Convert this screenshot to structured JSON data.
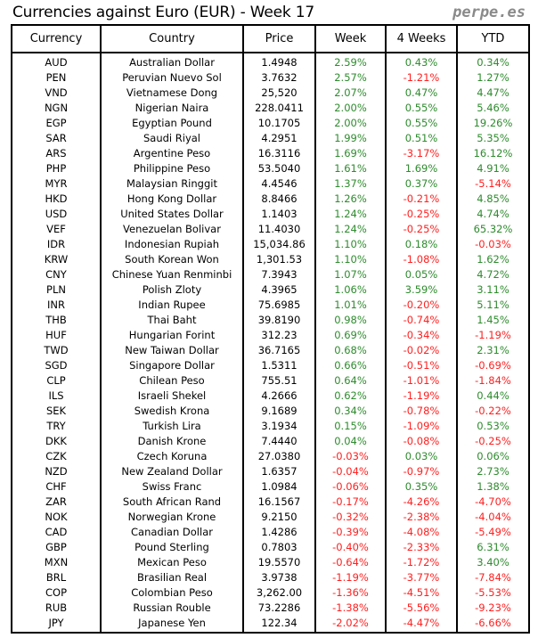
{
  "title": "Currencies against Euro (EUR) - Week 17",
  "brand": "perpe.es",
  "colors": {
    "positive": "#2e8b2e",
    "negative": "#ff2020"
  },
  "chart_data": {
    "type": "table",
    "title": "Currencies against Euro (EUR) - Week 17",
    "columns": [
      "Currency",
      "Country",
      "Price",
      "Week",
      "4 Weeks",
      "YTD"
    ],
    "rows": [
      [
        "AUD",
        "Australian Dollar",
        "1.4948",
        "2.59%",
        "0.43%",
        "0.34%"
      ],
      [
        "PEN",
        "Peruvian Nuevo Sol",
        "3.7632",
        "2.57%",
        "-1.21%",
        "1.27%"
      ],
      [
        "VND",
        "Vietnamese Dong",
        "25,520",
        "2.07%",
        "0.47%",
        "4.47%"
      ],
      [
        "NGN",
        "Nigerian Naira",
        "228.0411",
        "2.00%",
        "0.55%",
        "5.46%"
      ],
      [
        "EGP",
        "Egyptian Pound",
        "10.1705",
        "2.00%",
        "0.55%",
        "19.26%"
      ],
      [
        "SAR",
        "Saudi Riyal",
        "4.2951",
        "1.99%",
        "0.51%",
        "5.35%"
      ],
      [
        "ARS",
        "Argentine Peso",
        "16.3116",
        "1.69%",
        "-3.17%",
        "16.12%"
      ],
      [
        "PHP",
        "Philippine Peso",
        "53.5040",
        "1.61%",
        "1.69%",
        "4.91%"
      ],
      [
        "MYR",
        "Malaysian Ringgit",
        "4.4546",
        "1.37%",
        "0.37%",
        "-5.14%"
      ],
      [
        "HKD",
        "Hong Kong Dollar",
        "8.8466",
        "1.26%",
        "-0.21%",
        "4.85%"
      ],
      [
        "USD",
        "United States Dollar",
        "1.1403",
        "1.24%",
        "-0.25%",
        "4.74%"
      ],
      [
        "VEF",
        "Venezuelan Bolivar",
        "11.4030",
        "1.24%",
        "-0.25%",
        "65.32%"
      ],
      [
        "IDR",
        "Indonesian Rupiah",
        "15,034.86",
        "1.10%",
        "0.18%",
        "-0.03%"
      ],
      [
        "KRW",
        "South Korean Won",
        "1,301.53",
        "1.10%",
        "-1.08%",
        "1.62%"
      ],
      [
        "CNY",
        "Chinese Yuan Renminbi",
        "7.3943",
        "1.07%",
        "0.05%",
        "4.72%"
      ],
      [
        "PLN",
        "Polish Zloty",
        "4.3965",
        "1.06%",
        "3.59%",
        "3.11%"
      ],
      [
        "INR",
        "Indian Rupee",
        "75.6985",
        "1.01%",
        "-0.20%",
        "5.11%"
      ],
      [
        "THB",
        "Thai Baht",
        "39.8190",
        "0.98%",
        "-0.74%",
        "1.45%"
      ],
      [
        "HUF",
        "Hungarian Forint",
        "312.23",
        "0.69%",
        "-0.34%",
        "-1.19%"
      ],
      [
        "TWD",
        "New Taiwan Dollar",
        "36.7165",
        "0.68%",
        "-0.02%",
        "2.31%"
      ],
      [
        "SGD",
        "Singapore Dollar",
        "1.5311",
        "0.66%",
        "-0.51%",
        "-0.69%"
      ],
      [
        "CLP",
        "Chilean Peso",
        "755.51",
        "0.64%",
        "-1.01%",
        "-1.84%"
      ],
      [
        "ILS",
        "Israeli Shekel",
        "4.2666",
        "0.62%",
        "-1.19%",
        "0.44%"
      ],
      [
        "SEK",
        "Swedish Krona",
        "9.1689",
        "0.34%",
        "-0.78%",
        "-0.22%"
      ],
      [
        "TRY",
        "Turkish Lira",
        "3.1934",
        "0.15%",
        "-1.09%",
        "0.53%"
      ],
      [
        "DKK",
        "Danish Krone",
        "7.4440",
        "0.04%",
        "-0.08%",
        "-0.25%"
      ],
      [
        "CZK",
        "Czech Koruna",
        "27.0380",
        "-0.03%",
        "0.03%",
        "0.06%"
      ],
      [
        "NZD",
        "New Zealand Dollar",
        "1.6357",
        "-0.04%",
        "-0.97%",
        "2.73%"
      ],
      [
        "CHF",
        "Swiss Franc",
        "1.0984",
        "-0.06%",
        "0.35%",
        "1.38%"
      ],
      [
        "ZAR",
        "South African Rand",
        "16.1567",
        "-0.17%",
        "-4.26%",
        "-4.70%"
      ],
      [
        "NOK",
        "Norwegian Krone",
        "9.2150",
        "-0.32%",
        "-2.38%",
        "-4.04%"
      ],
      [
        "CAD",
        "Canadian Dollar",
        "1.4286",
        "-0.39%",
        "-4.08%",
        "-5.49%"
      ],
      [
        "GBP",
        "Pound Sterling",
        "0.7803",
        "-0.40%",
        "-2.33%",
        "6.31%"
      ],
      [
        "MXN",
        "Mexican Peso",
        "19.5570",
        "-0.64%",
        "-1.72%",
        "3.40%"
      ],
      [
        "BRL",
        "Brasilian Real",
        "3.9738",
        "-1.19%",
        "-3.77%",
        "-7.84%"
      ],
      [
        "COP",
        "Colombian Peso",
        "3,262.00",
        "-1.36%",
        "-4.51%",
        "-5.53%"
      ],
      [
        "RUB",
        "Russian Rouble",
        "73.2286",
        "-1.38%",
        "-5.56%",
        "-9.23%"
      ],
      [
        "JPY",
        "Japanese Yen",
        "122.34",
        "-2.02%",
        "-4.47%",
        "-6.66%"
      ]
    ]
  }
}
